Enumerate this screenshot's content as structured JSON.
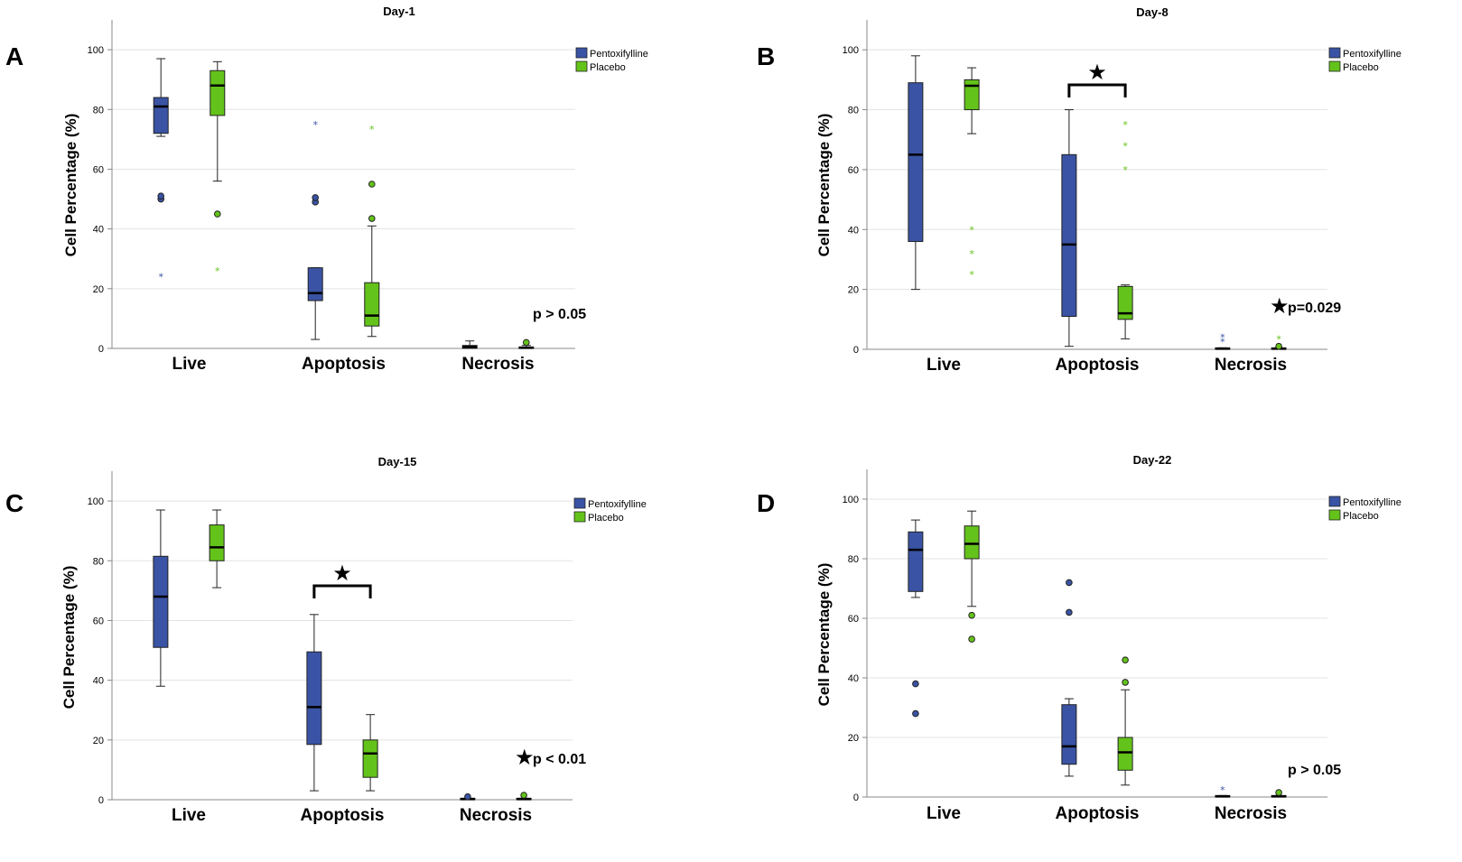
{
  "colors": {
    "pentoxifylline": "#3a53a4",
    "placebo": "#64c31a",
    "grid": "#e3e3e3",
    "axis": "#888888"
  },
  "chart_data": [
    {
      "panel": "A",
      "title": "Day-1",
      "type": "boxplot",
      "ylabel": "Cell Percentage (%)",
      "ylim": [
        0,
        110
      ],
      "yticks": [
        0,
        20,
        40,
        60,
        80,
        100
      ],
      "categories": [
        "Live",
        "Apoptosis",
        "Necrosis"
      ],
      "legend": [
        "Pentoxifylline",
        "Placebo"
      ],
      "annotation": "p > 0.05",
      "annotation_star": false,
      "bracket": null,
      "series": [
        {
          "name": "Pentoxifylline",
          "boxes": [
            {
              "min": 71,
              "q1": 72,
              "median": 81,
              "q3": 84,
              "max": 97,
              "outliers": [
                50,
                51
              ],
              "extremes": [
                24
              ]
            },
            {
              "min": 3,
              "q1": 16,
              "median": 18.5,
              "q3": 27,
              "max": 27,
              "outliers": [
                49,
                50.5
              ],
              "extremes": [
                75
              ]
            },
            {
              "min": 0,
              "q1": 0,
              "median": 0.5,
              "q3": 1,
              "max": 2.5,
              "outliers": [],
              "extremes": []
            }
          ]
        },
        {
          "name": "Placebo",
          "boxes": [
            {
              "min": 56,
              "q1": 78,
              "median": 88,
              "q3": 93,
              "max": 96,
              "outliers": [
                45
              ],
              "extremes": [
                26
              ]
            },
            {
              "min": 4,
              "q1": 7.5,
              "median": 11,
              "q3": 22,
              "max": 41,
              "outliers": [
                43.5,
                55
              ],
              "extremes": [
                73.5
              ]
            },
            {
              "min": 0,
              "q1": 0,
              "median": 0.2,
              "q3": 0.5,
              "max": 1,
              "outliers": [
                2
              ],
              "extremes": []
            }
          ]
        }
      ]
    },
    {
      "panel": "B",
      "title": "Day-8",
      "type": "boxplot",
      "ylabel": "Cell Percentage (%)",
      "ylim": [
        0,
        110
      ],
      "yticks": [
        0,
        20,
        40,
        60,
        80,
        100
      ],
      "categories": [
        "Live",
        "Apoptosis",
        "Necrosis"
      ],
      "legend": [
        "Pentoxifylline",
        "Placebo"
      ],
      "annotation": "p=0.029",
      "annotation_star": true,
      "bracket": {
        "category": 1
      },
      "series": [
        {
          "name": "Pentoxifylline",
          "boxes": [
            {
              "min": 20,
              "q1": 36,
              "median": 65,
              "q3": 89,
              "max": 98,
              "outliers": [],
              "extremes": []
            },
            {
              "min": 1,
              "q1": 11,
              "median": 35,
              "q3": 65,
              "max": 80,
              "outliers": [],
              "extremes": []
            },
            {
              "min": 0,
              "q1": 0,
              "median": 0.2,
              "q3": 0.5,
              "max": 0.5,
              "outliers": [],
              "extremes": [
                2.5,
                4
              ]
            }
          ]
        },
        {
          "name": "Placebo",
          "boxes": [
            {
              "min": 72,
              "q1": 80,
              "median": 88,
              "q3": 90,
              "max": 94,
              "outliers": [],
              "extremes": [
                25,
                32,
                40
              ]
            },
            {
              "min": 3.5,
              "q1": 10,
              "median": 12,
              "q3": 21,
              "max": 21.5,
              "outliers": [],
              "extremes": [
                60,
                68,
                75
              ]
            },
            {
              "min": 0,
              "q1": 0,
              "median": 0.2,
              "q3": 0.5,
              "max": 0.5,
              "outliers": [
                1
              ],
              "extremes": [
                3.5
              ]
            }
          ]
        }
      ]
    },
    {
      "panel": "C",
      "title": "Day-15",
      "type": "boxplot",
      "ylabel": "Cell Percentage (%)",
      "ylim": [
        0,
        110
      ],
      "yticks": [
        0,
        20,
        40,
        60,
        80,
        100
      ],
      "categories": [
        "Live",
        "Apoptosis",
        "Necrosis"
      ],
      "legend": [
        "Pentoxifylline",
        "Placebo"
      ],
      "annotation": "p < 0.01",
      "annotation_star": true,
      "bracket": {
        "category": 1
      },
      "series": [
        {
          "name": "Pentoxifylline",
          "boxes": [
            {
              "min": 38,
              "q1": 51,
              "median": 68,
              "q3": 81.5,
              "max": 97,
              "outliers": [],
              "extremes": []
            },
            {
              "min": 3,
              "q1": 18.5,
              "median": 31,
              "q3": 49.5,
              "max": 62,
              "outliers": [],
              "extremes": []
            },
            {
              "min": 0,
              "q1": 0,
              "median": 0.2,
              "q3": 0.5,
              "max": 0.5,
              "outliers": [
                1
              ],
              "extremes": []
            }
          ]
        },
        {
          "name": "Placebo",
          "boxes": [
            {
              "min": 71,
              "q1": 80,
              "median": 84.5,
              "q3": 92,
              "max": 97,
              "outliers": [],
              "extremes": []
            },
            {
              "min": 3,
              "q1": 7.5,
              "median": 15.5,
              "q3": 20,
              "max": 28.5,
              "outliers": [],
              "extremes": []
            },
            {
              "min": 0,
              "q1": 0,
              "median": 0.2,
              "q3": 0.5,
              "max": 0.5,
              "outliers": [
                1.5
              ],
              "extremes": []
            }
          ]
        }
      ]
    },
    {
      "panel": "D",
      "title": "Day-22",
      "type": "boxplot",
      "ylabel": "Cell Percentage (%)",
      "ylim": [
        0,
        110
      ],
      "yticks": [
        0,
        20,
        40,
        60,
        80,
        100
      ],
      "categories": [
        "Live",
        "Apoptosis",
        "Necrosis"
      ],
      "legend": [
        "Pentoxifylline",
        "Placebo"
      ],
      "annotation": "p > 0.05",
      "annotation_star": false,
      "bracket": null,
      "series": [
        {
          "name": "Pentoxifylline",
          "boxes": [
            {
              "min": 67,
              "q1": 69,
              "median": 83,
              "q3": 89,
              "max": 93,
              "outliers": [
                28,
                38
              ],
              "extremes": []
            },
            {
              "min": 7,
              "q1": 11,
              "median": 17,
              "q3": 31,
              "max": 33,
              "outliers": [
                62,
                72
              ],
              "extremes": []
            },
            {
              "min": 0,
              "q1": 0,
              "median": 0.2,
              "q3": 0.5,
              "max": 0.5,
              "outliers": [],
              "extremes": [
                2.5
              ]
            }
          ]
        },
        {
          "name": "Placebo",
          "boxes": [
            {
              "min": 64,
              "q1": 80,
              "median": 85,
              "q3": 91,
              "max": 96,
              "outliers": [
                53,
                61
              ],
              "extremes": []
            },
            {
              "min": 4,
              "q1": 9,
              "median": 15,
              "q3": 20,
              "max": 36,
              "outliers": [
                38.5,
                46
              ],
              "extremes": []
            },
            {
              "min": 0,
              "q1": 0,
              "median": 0.2,
              "q3": 0.5,
              "max": 0.5,
              "outliers": [
                1.5
              ],
              "extremes": []
            }
          ]
        }
      ]
    }
  ]
}
